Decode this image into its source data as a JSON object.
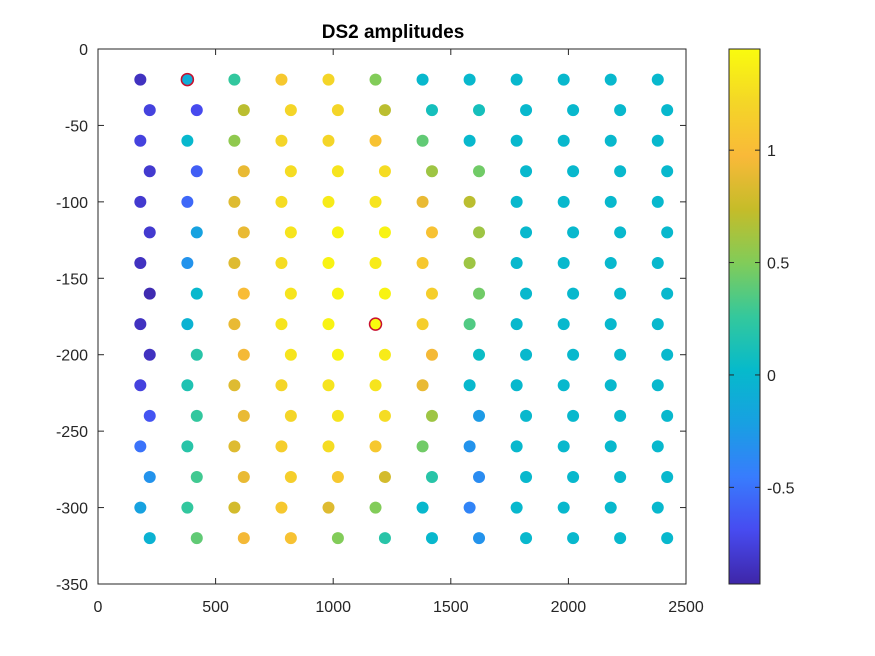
{
  "chart_data": {
    "type": "scatter",
    "title": "DS2 amplitudes",
    "xlim": [
      0,
      2500
    ],
    "ylim": [
      -350,
      0
    ],
    "xticks": [
      0,
      500,
      1000,
      1500,
      2000,
      2500
    ],
    "xtick_labels": [
      "0",
      "500",
      "1000",
      "1500",
      "2000",
      "2500"
    ],
    "yticks": [
      0,
      -50,
      -100,
      -150,
      -200,
      -250,
      -300,
      -350
    ],
    "ytick_labels": [
      "0",
      "-50",
      "-100",
      "-150",
      "-200",
      "-250",
      "-300",
      "-350"
    ],
    "colorbar": {
      "colormap": "parula",
      "limits": [
        -0.93,
        1.45
      ],
      "ticks": [
        -0.5,
        0,
        0.5,
        1
      ],
      "tick_labels": [
        "-0.5",
        "0",
        "0.5",
        "1"
      ]
    },
    "x_odd_rows": [
      180,
      380,
      580,
      780,
      980,
      1180,
      1380,
      1580,
      1780,
      1980,
      2180,
      2380
    ],
    "x_even_rows": [
      220,
      420,
      620,
      820,
      1020,
      1220,
      1420,
      1620,
      1820,
      2020,
      2220,
      2420
    ],
    "y_rows": [
      -20,
      -40,
      -60,
      -80,
      -100,
      -120,
      -140,
      -160,
      -180,
      -200,
      -220,
      -240,
      -260,
      -280,
      -300,
      -320
    ],
    "amplitudes": [
      [
        -0.85,
        -0.1,
        0.25,
        1.1,
        1.2,
        0.5,
        0.0,
        0.0,
        0.0,
        0.0,
        0.0,
        0.0
      ],
      [
        -0.75,
        -0.7,
        0.7,
        1.2,
        1.2,
        0.7,
        0.1,
        0.1,
        0.0,
        0.0,
        0.0,
        0.0
      ],
      [
        -0.75,
        0.0,
        0.55,
        1.2,
        1.2,
        1.05,
        0.4,
        0.0,
        0.0,
        0.0,
        0.0,
        0.0
      ],
      [
        -0.8,
        -0.6,
        0.9,
        1.25,
        1.3,
        1.25,
        0.6,
        0.45,
        0.0,
        0.0,
        0.0,
        0.0
      ],
      [
        -0.8,
        -0.55,
        0.85,
        1.25,
        1.35,
        1.3,
        0.9,
        0.7,
        0.0,
        0.0,
        0.0,
        0.0
      ],
      [
        -0.8,
        -0.2,
        0.9,
        1.3,
        1.4,
        1.4,
        1.05,
        0.6,
        0.0,
        0.0,
        0.0,
        0.0
      ],
      [
        -0.85,
        -0.3,
        0.85,
        1.25,
        1.4,
        1.35,
        1.1,
        0.6,
        0.0,
        0.0,
        0.0,
        0.0
      ],
      [
        -0.9,
        0.0,
        1.0,
        1.3,
        1.4,
        1.4,
        1.15,
        0.45,
        0.0,
        0.0,
        0.0,
        0.0
      ],
      [
        -0.85,
        -0.05,
        0.9,
        1.3,
        1.4,
        1.45,
        1.15,
        0.35,
        0.0,
        0.0,
        0.0,
        0.0
      ],
      [
        -0.85,
        0.2,
        0.95,
        1.3,
        1.4,
        1.35,
        0.95,
        0.05,
        0.0,
        0.0,
        0.0,
        0.0
      ],
      [
        -0.75,
        0.15,
        0.85,
        1.2,
        1.3,
        1.3,
        0.9,
        0.0,
        0.0,
        0.0,
        0.0,
        0.0
      ],
      [
        -0.65,
        0.25,
        0.9,
        1.2,
        1.3,
        1.25,
        0.6,
        -0.25,
        0.0,
        0.0,
        0.0,
        0.0
      ],
      [
        -0.5,
        0.2,
        0.85,
        1.15,
        1.25,
        1.1,
        0.45,
        -0.3,
        0.0,
        0.0,
        0.0,
        0.0
      ],
      [
        -0.3,
        0.3,
        0.9,
        1.15,
        1.1,
        0.8,
        0.2,
        -0.35,
        0.0,
        0.0,
        0.0,
        0.0
      ],
      [
        -0.2,
        0.25,
        0.8,
        1.1,
        0.85,
        0.5,
        0.0,
        -0.4,
        0.0,
        0.0,
        0.0,
        0.0
      ],
      [
        -0.05,
        0.4,
        0.95,
        1.05,
        0.5,
        0.2,
        0.0,
        -0.3,
        0.0,
        0.0,
        0.0,
        0.0
      ]
    ],
    "highlighted_points": [
      [
        380,
        -20
      ],
      [
        1180,
        -180
      ]
    ],
    "highlight_color": "#c8102e"
  }
}
